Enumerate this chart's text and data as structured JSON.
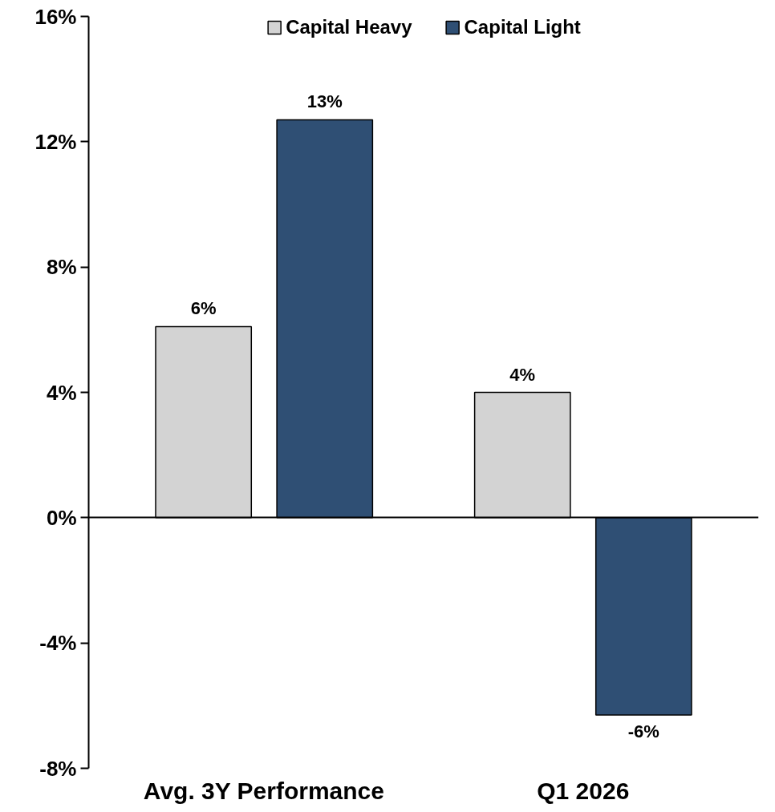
{
  "chart_data": {
    "type": "bar",
    "categories": [
      "Avg. 3Y Performance",
      "Q1 2026"
    ],
    "series": [
      {
        "name": "Capital Heavy",
        "color": "#d3d3d3",
        "values": [
          6.1,
          4.0
        ],
        "value_labels": [
          "6%",
          "4%"
        ]
      },
      {
        "name": "Capital Light",
        "color": "#2f4f74",
        "values": [
          12.7,
          -6.3
        ],
        "value_labels": [
          "13%",
          "-6%"
        ]
      }
    ],
    "ylim": [
      -8,
      16
    ],
    "yticks": [
      {
        "value": -8,
        "label": "-8%"
      },
      {
        "value": -4,
        "label": "-4%"
      },
      {
        "value": 0,
        "label": "0%"
      },
      {
        "value": 4,
        "label": "4%"
      },
      {
        "value": 8,
        "label": "8%"
      },
      {
        "value": 12,
        "label": "12%"
      },
      {
        "value": 16,
        "label": "16%"
      }
    ],
    "legend": "top"
  }
}
